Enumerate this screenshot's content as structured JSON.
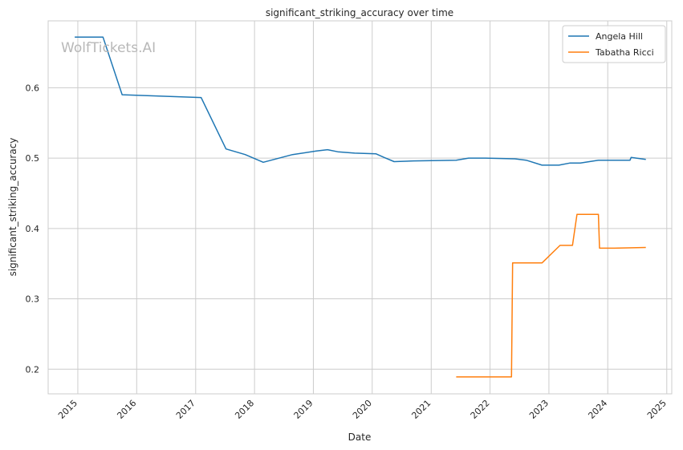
{
  "chart_data": {
    "type": "line",
    "title": "significant_striking_accuracy over time",
    "xlabel": "Date",
    "ylabel": "significant_striking_accuracy",
    "watermark": "WolfTickets.AI",
    "x_ticks": [
      "2015",
      "2016",
      "2017",
      "2018",
      "2019",
      "2020",
      "2021",
      "2022",
      "2023",
      "2024",
      "2025"
    ],
    "y_ticks": [
      "0.2",
      "0.3",
      "0.4",
      "0.5",
      "0.6"
    ],
    "xlim": [
      "2014-07-01",
      "2025-02-01"
    ],
    "ylim": [
      0.165,
      0.695
    ],
    "grid": true,
    "legend_position": "top-right",
    "series": [
      {
        "name": "Angela Hill",
        "color": "#1f77b4",
        "x": [
          "2014-12-13",
          "2015-06-06",
          "2015-10-03",
          "2017-02-04",
          "2017-07-08",
          "2017-11-04",
          "2018-02-24",
          "2018-08-25",
          "2019-01-19",
          "2019-03-30",
          "2019-06-01",
          "2019-09-14",
          "2020-01-25",
          "2020-03-14",
          "2020-05-16",
          "2020-09-12",
          "2021-06-05",
          "2021-08-21",
          "2021-12-04",
          "2022-06-04",
          "2022-08-13",
          "2022-11-19",
          "2023-03-04",
          "2023-05-13",
          "2023-07-15",
          "2023-11-04",
          "2024-05-18",
          "2024-05-25",
          "2024-08-24"
        ],
        "values": [
          0.672,
          0.672,
          0.59,
          0.586,
          0.513,
          0.505,
          0.494,
          0.505,
          0.51,
          0.512,
          0.509,
          0.507,
          0.506,
          0.501,
          0.495,
          0.496,
          0.497,
          0.5,
          0.5,
          0.499,
          0.497,
          0.49,
          0.49,
          0.493,
          0.493,
          0.497,
          0.497,
          0.501,
          0.498
        ]
      },
      {
        "name": "Tabatha Ricci",
        "color": "#ff7f0e",
        "x": [
          "2021-06-05",
          "2022-05-14",
          "2022-05-21",
          "2022-11-19",
          "2023-03-11",
          "2023-05-27",
          "2023-06-24",
          "2023-11-04",
          "2023-11-11",
          "2024-02-10",
          "2024-08-24"
        ],
        "values": [
          0.189,
          0.189,
          0.351,
          0.351,
          0.376,
          0.376,
          0.42,
          0.42,
          0.372,
          0.372,
          0.373
        ]
      }
    ]
  }
}
